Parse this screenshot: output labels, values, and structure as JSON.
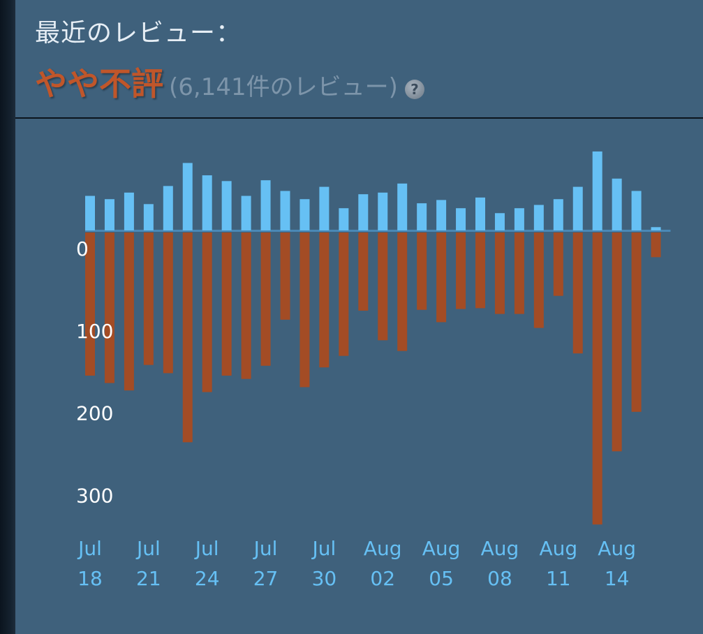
{
  "header": {
    "title": "最近のレビュー：",
    "rating": "やや不評",
    "review_count": "(6,141件のレビュー)",
    "help_symbol": "?"
  },
  "colors": {
    "panel": "#3f617c",
    "positive": "#66c0f4",
    "negative": "#a34c25",
    "rating": "#c0562a",
    "axis_text": "#ffffff",
    "date_text": "#66c0f4"
  },
  "chart_data": {
    "type": "bar",
    "y_tick_labels": [
      "0",
      "100",
      "200",
      "300"
    ],
    "y_ticks": [
      0,
      100,
      200,
      300
    ],
    "ylim_negative": [
      0,
      330
    ],
    "series": [
      {
        "values": [
          42,
          38,
          46,
          32,
          54,
          82,
          67,
          60,
          42,
          61,
          48,
          38,
          53,
          27,
          44,
          46,
          57,
          33,
          37,
          27,
          40,
          21,
          27,
          31,
          38,
          53,
          96,
          63,
          48,
          4
        ]
      },
      {
        "values": [
          174,
          183,
          192,
          161,
          171,
          255,
          194,
          174,
          178,
          162,
          106,
          188,
          164,
          150,
          95,
          131,
          144,
          94,
          109,
          93,
          92,
          99,
          99,
          116,
          77,
          147,
          355,
          266,
          218,
          30
        ]
      }
    ],
    "x_labels": [
      {
        "bar": 0,
        "month": "Jul",
        "day": "18"
      },
      {
        "bar": 3,
        "month": "Jul",
        "day": "21"
      },
      {
        "bar": 6,
        "month": "Jul",
        "day": "24"
      },
      {
        "bar": 9,
        "month": "Jul",
        "day": "27"
      },
      {
        "bar": 12,
        "month": "Jul",
        "day": "30"
      },
      {
        "bar": 15,
        "month": "Aug",
        "day": "02"
      },
      {
        "bar": 18,
        "month": "Aug",
        "day": "05"
      },
      {
        "bar": 21,
        "month": "Aug",
        "day": "08"
      },
      {
        "bar": 24,
        "month": "Aug",
        "day": "11"
      },
      {
        "bar": 27,
        "month": "Aug",
        "day": "14"
      }
    ]
  }
}
